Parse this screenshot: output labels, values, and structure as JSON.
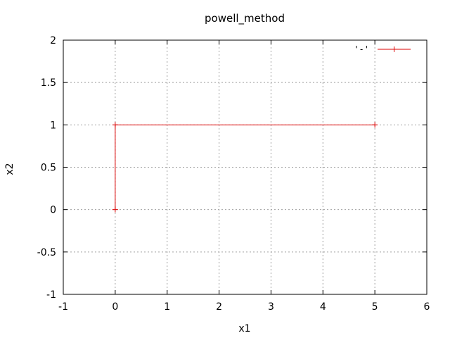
{
  "chart_data": {
    "type": "line",
    "title": "powell_method",
    "xlabel": "x1",
    "ylabel": "x2",
    "xlim": [
      -1,
      6
    ],
    "ylim": [
      -1,
      2
    ],
    "xticks": [
      -1,
      0,
      1,
      2,
      3,
      4,
      5,
      6
    ],
    "yticks": [
      -1,
      -0.5,
      0,
      0.5,
      1,
      1.5,
      2
    ],
    "xtick_labels": [
      "-1",
      "0",
      "1",
      "2",
      "3",
      "4",
      "5",
      "6"
    ],
    "ytick_labels": [
      "-1",
      "-0.5",
      "0",
      "0.5",
      "1",
      "1.5",
      "2"
    ],
    "grid": true,
    "legend_position": "top-right",
    "series": [
      {
        "name": "'-'",
        "color": "#dd0000",
        "marker": "plus",
        "x": [
          0,
          0,
          5
        ],
        "y": [
          0,
          1,
          1
        ]
      }
    ]
  }
}
